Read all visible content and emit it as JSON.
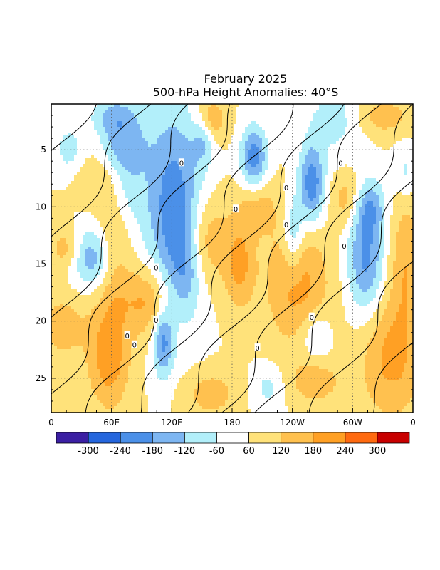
{
  "chart_data": {
    "type": "heatmap",
    "title": "February 2025",
    "subtitle": "500-hPa Height Anomalies: 40°S",
    "xlabel": "",
    "ylabel": "",
    "x_ticks": [
      "0",
      "60E",
      "120E",
      "180",
      "120W",
      "60W",
      "0"
    ],
    "y_ticks": [
      5,
      10,
      15,
      20,
      25
    ],
    "x_range_deg": [
      0,
      360
    ],
    "y_range_days": [
      1,
      28
    ],
    "grid": "dotted",
    "colorbar": {
      "placement": "bottom",
      "labels": [
        "-300",
        "-240",
        "-180",
        "-120",
        "-60",
        "60",
        "120",
        "180",
        "240",
        "300"
      ],
      "colors": [
        "#3b1fa3",
        "#2566dd",
        "#4b90e8",
        "#7db6f2",
        "#b2effa",
        "#ffffff",
        "#ffe27a",
        "#ffc14f",
        "#ffa024",
        "#ff6a10",
        "#c80000"
      ]
    },
    "contour_labels": [
      "0",
      "0",
      "0",
      "0",
      "0",
      "0",
      "0",
      "0",
      "0",
      "0",
      "0",
      "0"
    ]
  }
}
